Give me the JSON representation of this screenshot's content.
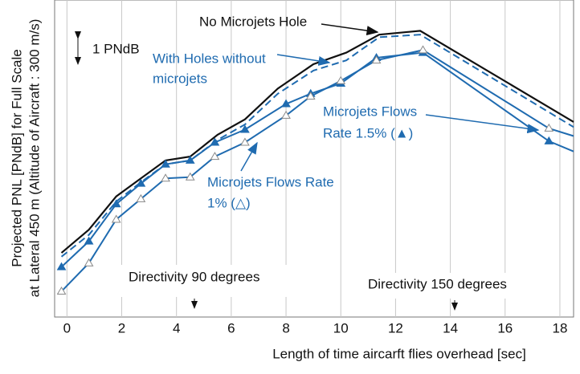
{
  "chart_data": {
    "type": "line",
    "xlabel": "Length of time aircarft flies overhead [sec]",
    "ylabel": [
      "Projected PNL [PNdB] for Full Scale",
      "at Lateral 450 m (Altitude of Aircraft : 300 m/s)"
    ],
    "xlim": [
      -0.45,
      18.5
    ],
    "ylim": [
      0,
      12.35
    ],
    "xticks": [
      0,
      2,
      4,
      6,
      8,
      10,
      12,
      14,
      16,
      18
    ],
    "grid": true,
    "series": [
      {
        "color": "#111111",
        "dash": false,
        "marker": "none",
        "x": [
          -0.2,
          0.8,
          1.8,
          2.7,
          3.6,
          4.5,
          5.5,
          6.5,
          7.7,
          9.0,
          10.2,
          11.4,
          12.9,
          18.5
        ],
        "values": [
          2.5,
          3.4,
          4.7,
          5.4,
          6.1,
          6.25,
          7.1,
          7.7,
          8.9,
          9.85,
          10.3,
          11.0,
          11.15,
          7.6
        ]
      },
      {
        "color": "#1f6bb0",
        "dash": true,
        "marker": "none",
        "x": [
          -0.2,
          0.8,
          1.8,
          2.7,
          3.6,
          4.5,
          5.5,
          6.5,
          7.7,
          9.0,
          10.2,
          11.4,
          12.9,
          18.5
        ],
        "values": [
          2.35,
          3.2,
          4.5,
          5.25,
          5.95,
          6.1,
          6.9,
          7.5,
          8.7,
          9.6,
          10.0,
          10.9,
          11.0,
          7.4
        ]
      },
      {
        "color": "#1f6bb0",
        "dash": false,
        "marker": "filled-triangle",
        "x": [
          -0.2,
          0.8,
          1.8,
          2.7,
          3.6,
          4.5,
          5.4,
          6.5,
          8.0,
          8.9,
          10.0,
          11.3,
          13.0,
          17.6,
          18.5
        ],
        "values": [
          1.95,
          2.95,
          4.4,
          5.2,
          5.95,
          6.1,
          6.8,
          7.3,
          8.3,
          8.7,
          9.1,
          10.1,
          10.3,
          6.85,
          6.45
        ]
      },
      {
        "color": "#1f6bb0",
        "dash": false,
        "marker": "open-triangle",
        "x": [
          -0.2,
          0.8,
          1.8,
          2.7,
          3.6,
          4.5,
          5.4,
          6.5,
          8.0,
          8.9,
          10.0,
          11.3,
          13.0,
          17.6,
          18.5
        ],
        "values": [
          1.0,
          2.1,
          3.8,
          4.6,
          5.4,
          5.45,
          6.25,
          6.8,
          7.85,
          8.6,
          9.2,
          10.0,
          10.4,
          7.35,
          7.05
        ]
      }
    ],
    "annotations": {
      "scale": "1 PNdB",
      "no_holes": "No Microjets Hole",
      "holes": [
        "With Holes without",
        "microjets"
      ],
      "rate15": [
        "Microjets Flows",
        "Rate 1.5% (▲)"
      ],
      "rate1": [
        "Microjets  Flows  Rate",
        "1% (△)"
      ],
      "dir90": "Directivity 90 degrees",
      "dir150": "Directivity 150 degrees"
    }
  }
}
